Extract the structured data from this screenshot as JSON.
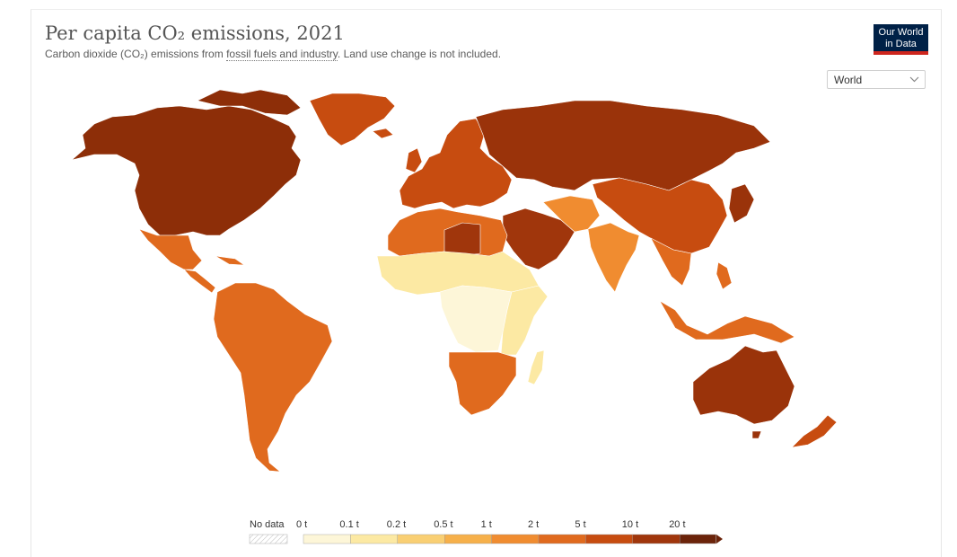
{
  "header": {
    "title": "Per capita CO₂ emissions, 2021",
    "subtitle_pre": "Carbon dioxide (CO₂) emissions from ",
    "subtitle_link": "fossil fuels and industry",
    "subtitle_post": ". Land use change is not included."
  },
  "logo": {
    "line1": "Our World",
    "line2": "in Data"
  },
  "region_select": {
    "value": "World"
  },
  "legend": {
    "no_data_label": "No data",
    "bins": [
      {
        "label": "0 t",
        "color": "#fdf6d8"
      },
      {
        "label": "0.1 t",
        "color": "#fce9a3"
      },
      {
        "label": "0.2 t",
        "color": "#f9cf73"
      },
      {
        "label": "0.5 t",
        "color": "#f6b04a"
      },
      {
        "label": "1 t",
        "color": "#f08c30"
      },
      {
        "label": "2 t",
        "color": "#e06a1e"
      },
      {
        "label": "5 t",
        "color": "#c74c10"
      },
      {
        "label": "10 t",
        "color": "#a0360c"
      },
      {
        "label": "20 t",
        "color": "#6b230a"
      }
    ]
  },
  "map_data": {
    "north_america": "#8d2e08",
    "greenland": "#c74c10",
    "mexico_central": "#e06a1e",
    "south_america": "#e06a1e",
    "europe": "#c74c10",
    "russia_central_asia": "#9a330a",
    "china_east_asia": "#c74c10",
    "south_asia": "#f08c30",
    "middle_east": "#a0360c",
    "north_africa": "#e06a1e",
    "sahel": "#fce9a3",
    "central_africa": "#fdf6d8",
    "east_africa": "#fce9a3",
    "southern_africa": "#e06a1e",
    "southeast_asia": "#e06a1e",
    "australia": "#9a330a",
    "new_zealand": "#c74c10"
  }
}
